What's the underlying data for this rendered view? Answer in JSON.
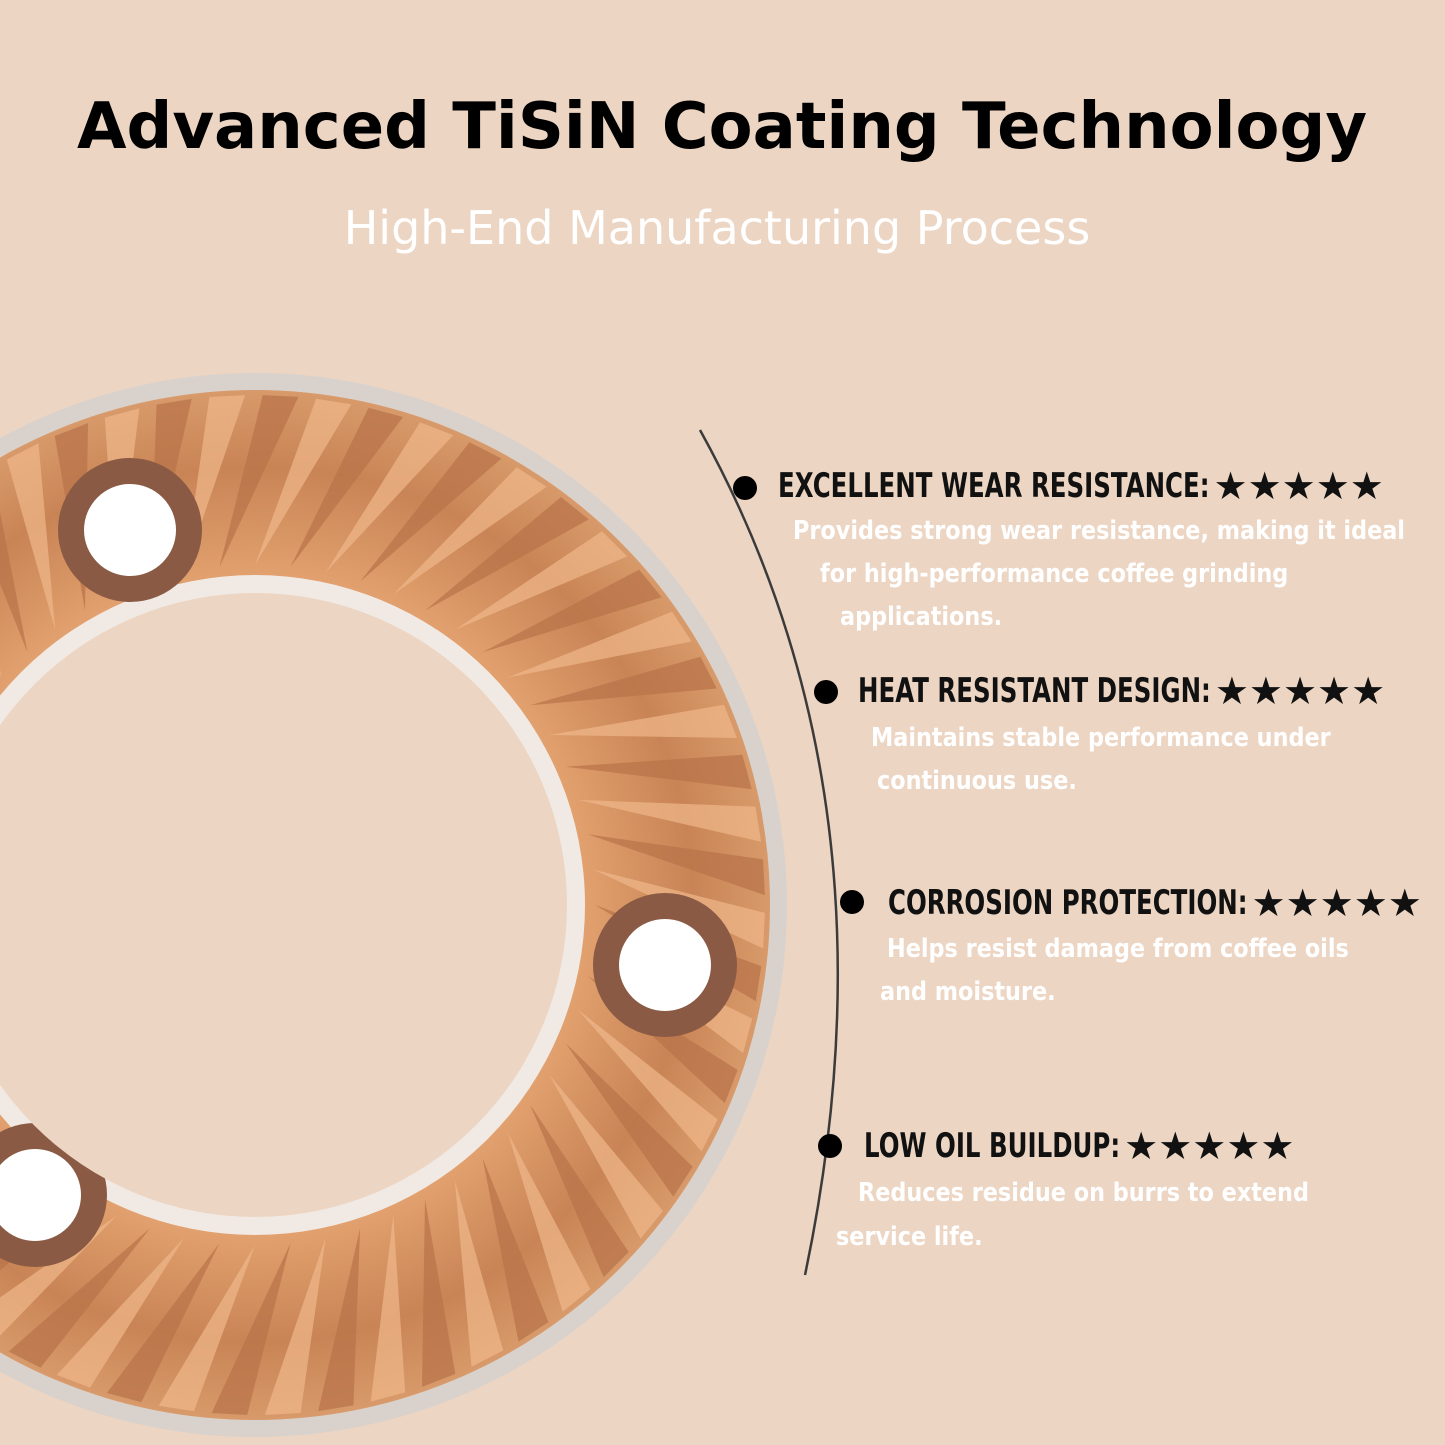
{
  "header": {
    "title": "Advanced TiSiN Coating Technology",
    "subtitle": "High-End Manufacturing Process"
  },
  "features": [
    {
      "heading": "EXCELLENT WEAR RESISTANCE:",
      "rating": "★★★★★",
      "lines": [
        "Provides strong wear resistance, making it ideal",
        "for high-performance coffee grinding",
        "applications."
      ]
    },
    {
      "heading": "HEAT RESISTANT DESIGN:",
      "rating": "★★★★★",
      "lines": [
        "Maintains stable performance under",
        "continuous use."
      ]
    },
    {
      "heading": "CORROSION PROTECTION:",
      "rating": "★★★★★",
      "lines": [
        "Helps resist damage from coffee oils",
        "and moisture."
      ]
    },
    {
      "heading": "LOW OIL BUILDUP:",
      "rating": "★★★★★",
      "lines": [
        "Reduces residue on burrs to extend",
        "service life."
      ]
    }
  ]
}
